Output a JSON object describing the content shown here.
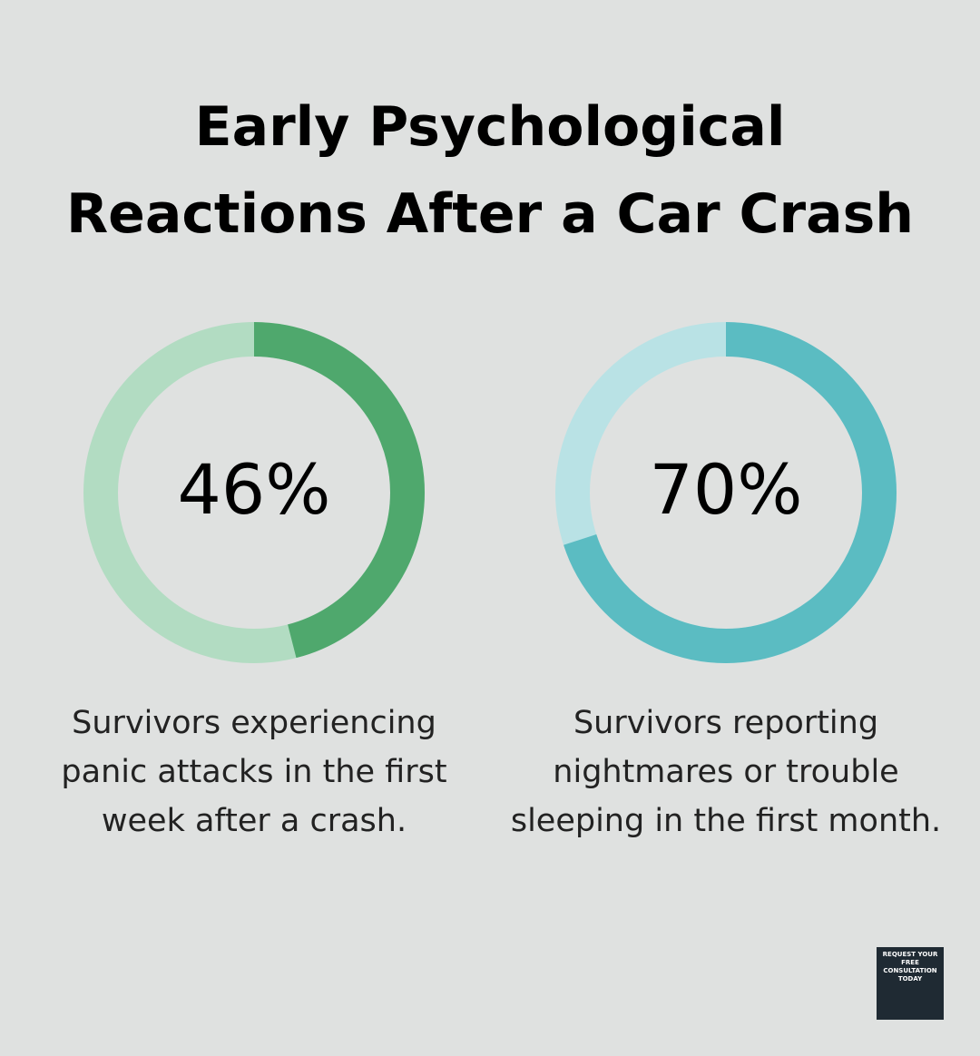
{
  "title": "Early Psychological\nReactions After a Car Crash",
  "chart_data": [
    {
      "type": "donut",
      "values": [
        46
      ],
      "value_labels": [
        "46%"
      ],
      "ylim": [
        0,
        100
      ],
      "color": "#4fa86d",
      "track_color": "#b2dcc2",
      "caption": "Survivors experiencing\npanic attacks in the first\nweek after a crash."
    },
    {
      "type": "donut",
      "values": [
        70
      ],
      "value_labels": [
        "70%"
      ],
      "ylim": [
        0,
        100
      ],
      "color": "#5bbcc2",
      "track_color": "#b9e2e5",
      "caption": "Survivors reporting\nnightmares or trouble\nsleeping in the first month."
    }
  ],
  "badge": {
    "text": "REQUEST YOUR FREE CONSULTATION TODAY"
  }
}
